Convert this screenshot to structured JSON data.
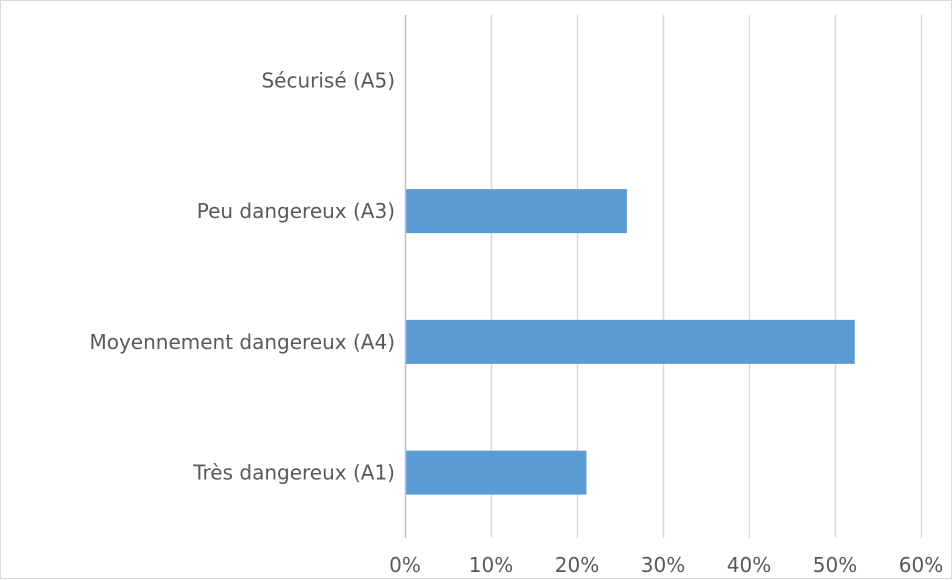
{
  "chart_data": {
    "type": "bar",
    "orientation": "horizontal",
    "title": "",
    "xlabel": "",
    "ylabel": "",
    "categories": [
      "Sécurisé (A5)",
      "Peu dangereux (A3)",
      "Moyennement dangereux (A4)",
      "Très dangereux (A1)"
    ],
    "values": [
      0.1,
      25.8,
      52.3,
      21.1
    ],
    "xlim": [
      0,
      60
    ],
    "x_ticks": [
      0,
      10,
      20,
      30,
      40,
      50,
      60
    ],
    "x_tick_labels": [
      "0%",
      "10%",
      "20%",
      "30%",
      "40%",
      "50%",
      "60%"
    ],
    "grid": "vertical",
    "legend": "none",
    "bar_color": "#5b9bd5",
    "grid_color": "#d9d9d9",
    "axis_color": "#bfbfbf",
    "label_color": "#595959"
  }
}
